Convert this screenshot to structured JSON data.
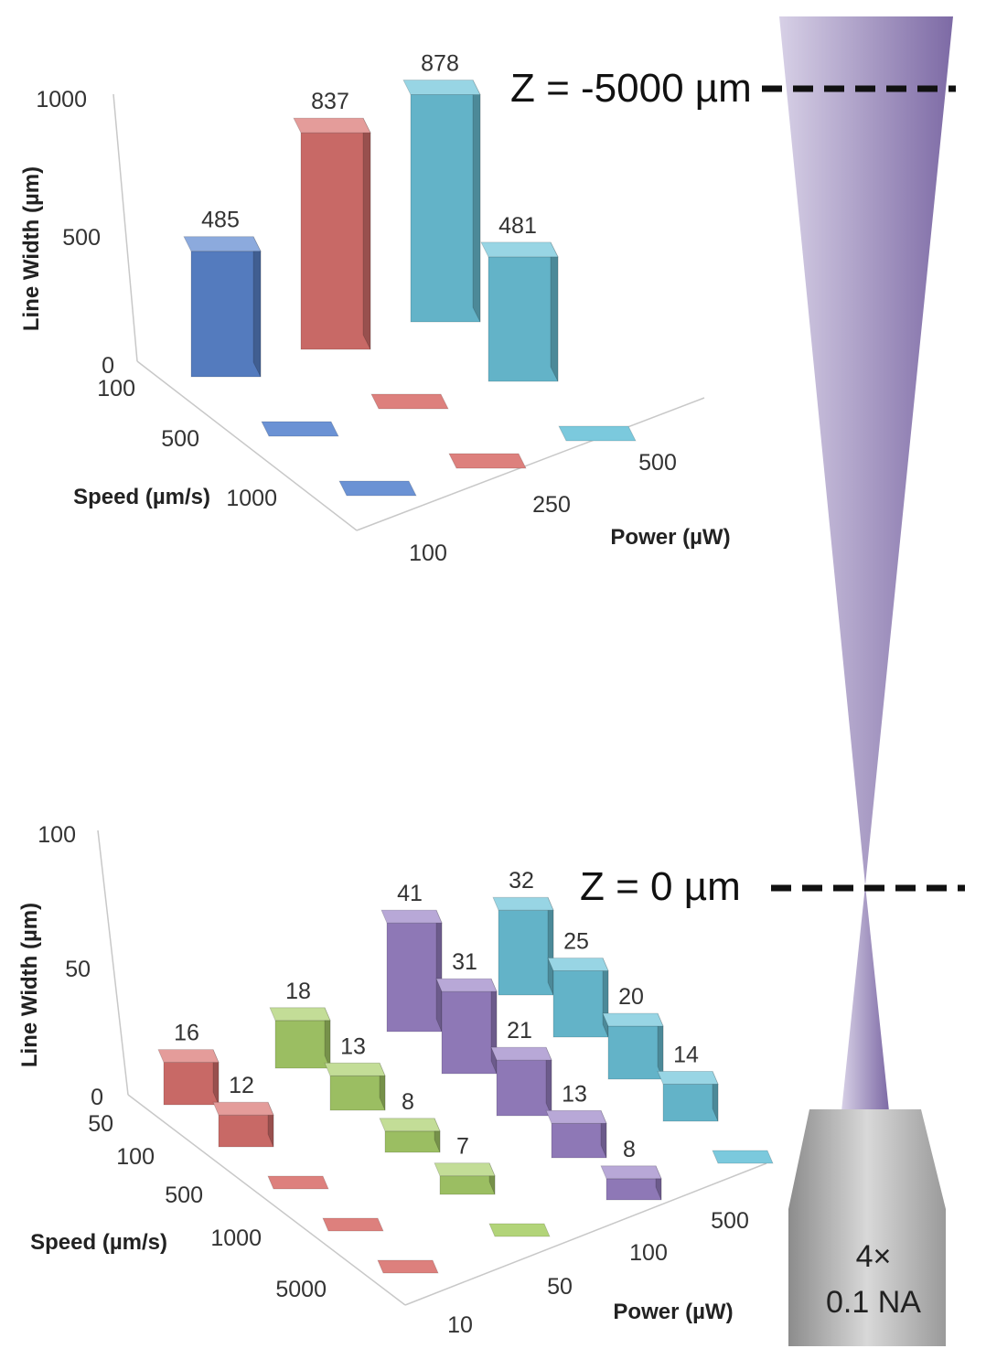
{
  "chart_data": [
    {
      "type": "bar3d",
      "ylabel": "Line Width (µm)",
      "speed_axis_label": "Speed (µm/s)",
      "power_axis_label": "Power (µW)",
      "ylim": [
        0,
        1000
      ],
      "yticks": [
        "0",
        "500",
        "1000"
      ],
      "speed_categories": [
        "100",
        "500",
        "1000"
      ],
      "power_categories": [
        "100",
        "250",
        "500"
      ],
      "series": [
        {
          "power": "100",
          "color": "#5b86cf",
          "values": [
            485,
            0,
            0
          ]
        },
        {
          "power": "250",
          "color": "#d9726f",
          "values": [
            837,
            0,
            0
          ]
        },
        {
          "power": "500",
          "color": "#6cc3d9",
          "values": [
            878,
            481,
            0
          ]
        }
      ],
      "data_labels": [
        "485",
        "837",
        "878",
        "481"
      ]
    },
    {
      "type": "bar3d",
      "ylabel": "Line Width (µm)",
      "speed_axis_label": "Speed (µm/s)",
      "power_axis_label": "Power (µW)",
      "ylim": [
        0,
        100
      ],
      "yticks": [
        "0",
        "50",
        "100"
      ],
      "speed_categories": [
        "50",
        "100",
        "500",
        "1000",
        "5000"
      ],
      "power_categories": [
        "10",
        "50",
        "100",
        "500"
      ],
      "series": [
        {
          "power": "10",
          "color": "#d9726f",
          "values": [
            16,
            12,
            0,
            0,
            0
          ]
        },
        {
          "power": "50",
          "color": "#a9cf6a",
          "values": [
            18,
            13,
            8,
            7,
            0
          ]
        },
        {
          "power": "100",
          "color": "#9a82c6",
          "values": [
            41,
            31,
            21,
            13,
            8
          ]
        },
        {
          "power": "500",
          "color": "#6cc3d9",
          "values": [
            32,
            25,
            20,
            14,
            0
          ]
        }
      ],
      "data_labels": [
        "16",
        "12",
        "18",
        "13",
        "8",
        "7",
        "41",
        "31",
        "21",
        "13",
        "8",
        "32",
        "25",
        "20",
        "14"
      ]
    }
  ],
  "annotations": {
    "z_top": "Z = -5000 µm",
    "z_bottom": "Z = 0 µm",
    "objective_mag": "4×",
    "objective_na": "0.1 NA"
  },
  "beam_color": "#8a77b0",
  "objective_color": "#a8a8a8"
}
